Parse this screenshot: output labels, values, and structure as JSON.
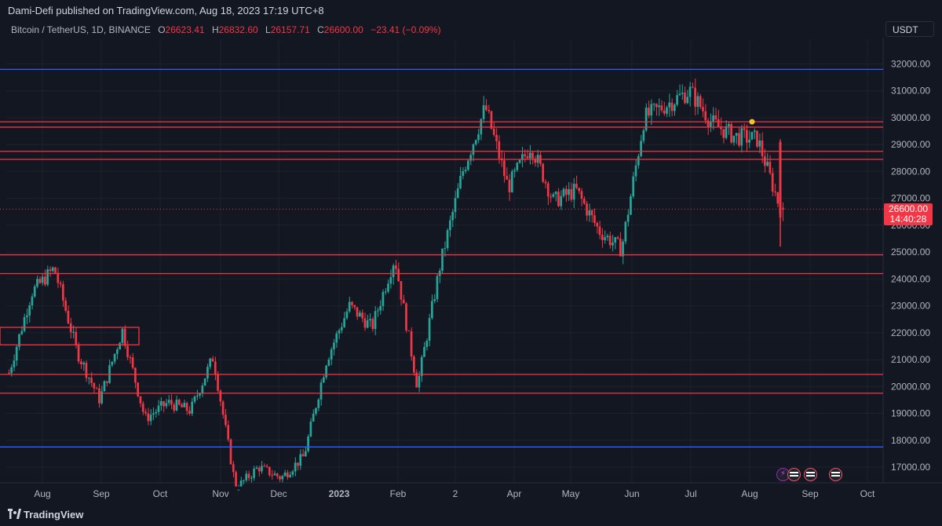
{
  "header": {
    "published": "Dami-Defi published on TradingView.com, Aug 18, 2023 17:19 UTC+8"
  },
  "symbol": {
    "name": "Bitcoin / TetherUS, 1D, BINANCE",
    "o_label": "O",
    "o": "26623.41",
    "h_label": "H",
    "h": "26832.60",
    "l_label": "L",
    "l": "26157.71",
    "c_label": "C",
    "c": "26600.00",
    "change": "−23.41 (−0.09%)"
  },
  "currency": "USDT",
  "last_price": {
    "price": "26600.00",
    "countdown": "14:40:28"
  },
  "footer": {
    "brand": "TradingView"
  },
  "colors": {
    "up": "#26a69a",
    "down": "#f23645",
    "level": "#f23645",
    "range": "#2962ff",
    "background": "#131722"
  },
  "chart_data": {
    "type": "candlestick",
    "y_ticks": [
      "17000.00",
      "18000.00",
      "19000.00",
      "20000.00",
      "21000.00",
      "22000.00",
      "23000.00",
      "24000.00",
      "25000.00",
      "26000.00",
      "27000.00",
      "28000.00",
      "29000.00",
      "30000.00",
      "31000.00",
      "32000.00"
    ],
    "x_ticks": [
      "Aug",
      "Sep",
      "Oct",
      "Nov",
      "Dec",
      "2023",
      "Feb",
      "2",
      "Apr",
      "May",
      "Jun",
      "Jul",
      "Aug",
      "Sep",
      "Oct"
    ],
    "ylim": [
      16500,
      32800
    ],
    "horizontal_levels": [
      {
        "price": 31800,
        "color": "blue"
      },
      {
        "price": 29850,
        "color": "red"
      },
      {
        "price": 29650,
        "color": "red"
      },
      {
        "price": 28750,
        "color": "red"
      },
      {
        "price": 28450,
        "color": "red"
      },
      {
        "price": 24900,
        "color": "red"
      },
      {
        "price": 24200,
        "color": "red"
      },
      {
        "price": 20450,
        "color": "red"
      },
      {
        "price": 19750,
        "color": "red"
      },
      {
        "price": 17750,
        "color": "blue"
      }
    ],
    "zones": [
      {
        "top": 22200,
        "bottom": 21550
      }
    ],
    "last_price_line": 26600,
    "close_path": [
      {
        "month": "Jul 2022",
        "close": 20500
      },
      {
        "month": "Aug 2022",
        "close": 23500
      },
      {
        "month": "Aug 2022",
        "close": 24400
      },
      {
        "month": "Aug 2022",
        "close": 21300
      },
      {
        "month": "Sep 2022",
        "close": 19500
      },
      {
        "month": "Sep 2022",
        "close": 22100
      },
      {
        "month": "Sep 2022",
        "close": 18800
      },
      {
        "month": "Oct 2022",
        "close": 19400
      },
      {
        "month": "Oct 2022",
        "close": 19100
      },
      {
        "month": "Nov 2022",
        "close": 21100
      },
      {
        "month": "Nov 2022",
        "close": 16200
      },
      {
        "month": "Dec 2022",
        "close": 17000
      },
      {
        "month": "Dec 2022",
        "close": 16600
      },
      {
        "month": "Jan 2023",
        "close": 17400
      },
      {
        "month": "Jan 2023",
        "close": 21000
      },
      {
        "month": "Jan 2023",
        "close": 23000
      },
      {
        "month": "Feb 2023",
        "close": 22200
      },
      {
        "month": "Feb 2023",
        "close": 24800
      },
      {
        "month": "Mar 2023",
        "close": 20000
      },
      {
        "month": "Mar 2023",
        "close": 24500
      },
      {
        "month": "Mar 2023",
        "close": 28000
      },
      {
        "month": "Apr 2023",
        "close": 30400
      },
      {
        "month": "Apr 2023",
        "close": 27400
      },
      {
        "month": "May 2023",
        "close": 29000
      },
      {
        "month": "May 2023",
        "close": 26900
      },
      {
        "month": "May 2023",
        "close": 27300
      },
      {
        "month": "Jun 2023",
        "close": 25800
      },
      {
        "month": "Jun 2023",
        "close": 25100
      },
      {
        "month": "Jun 2023",
        "close": 30000
      },
      {
        "month": "Jul 2023",
        "close": 30500
      },
      {
        "month": "Jul 2023",
        "close": 31000
      },
      {
        "month": "Jul 2023",
        "close": 29800
      },
      {
        "month": "Aug 2023",
        "close": 29300
      },
      {
        "month": "Aug 2023",
        "close": 29200
      },
      {
        "month": "Aug 2023",
        "close": 26600
      }
    ]
  }
}
